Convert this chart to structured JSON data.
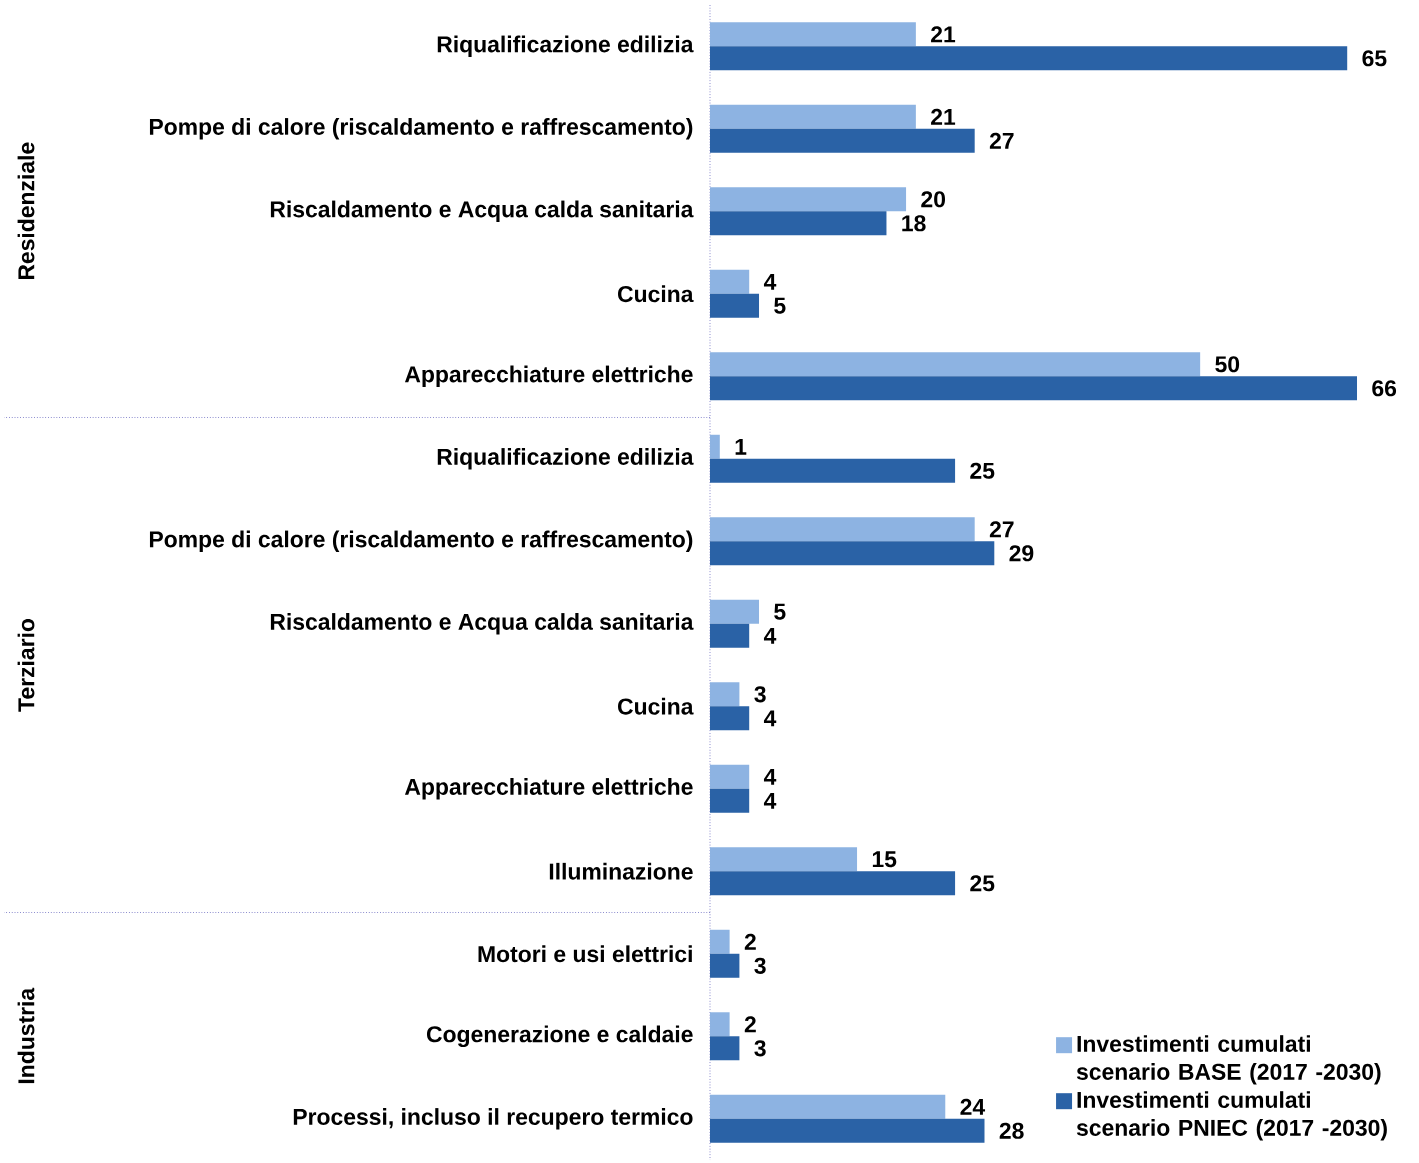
{
  "chart_data": {
    "type": "bar",
    "orientation": "horizontal",
    "categories": [
      "Riqualificazione edilizia",
      "Pompe di calore (riscaldamento e raffrescamento)",
      "Riscaldamento e Acqua calda sanitaria",
      "Cucina",
      "Apparecchiature elettriche",
      "Riqualificazione edilizia",
      "Pompe di calore (riscaldamento e raffrescamento)",
      "Riscaldamento e Acqua calda sanitaria",
      "Cucina",
      "Apparecchiature elettriche",
      "Illuminazione",
      "Motori e usi elettrici",
      "Cogenerazione e caldaie",
      "Processi, incluso il recupero termico"
    ],
    "series": [
      {
        "name": "Investimenti cumulati scenario BASE (2017 -2030)",
        "color": "#8db3e2",
        "values": [
          21,
          21,
          20,
          4,
          50,
          1,
          27,
          5,
          3,
          4,
          15,
          2,
          2,
          24
        ]
      },
      {
        "name": "Investimenti cumulati scenario PNIEC (2017 -2030)",
        "color": "#2a62a6",
        "values": [
          65,
          27,
          18,
          5,
          66,
          25,
          29,
          4,
          4,
          4,
          25,
          3,
          3,
          28
        ]
      }
    ],
    "annotations": [
      "Residenziale",
      "Terziario",
      "Industria"
    ],
    "data_labels": true,
    "legend": "bottom right",
    "tick_labels": "y"
  }
}
